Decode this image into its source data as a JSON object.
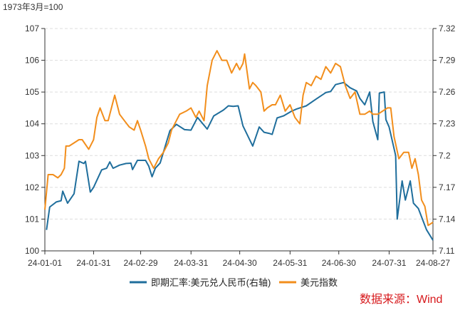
{
  "chart_data": {
    "type": "line",
    "left_axis_note": "1973年3月=100",
    "source_note": "数据来源：Wind",
    "x_ticks": [
      "24-01-01",
      "24-01-31",
      "24-02-29",
      "24-03-31",
      "24-04-30",
      "24-05-31",
      "24-06-30",
      "24-07-31",
      "24-08-27"
    ],
    "x_range": [
      "2024-01-01",
      "2024-08-27"
    ],
    "y_left": {
      "min": 100,
      "max": 107,
      "ticks": [
        "100",
        "101",
        "102",
        "103",
        "104",
        "105",
        "106",
        "107"
      ]
    },
    "y_right": {
      "min": 7.11,
      "max": 7.32,
      "ticks": [
        "7.11",
        "7.14",
        "7.17",
        "7.2",
        "7.23",
        "7.26",
        "7.29",
        "7.32"
      ]
    },
    "grid": "horizontal-dashed",
    "legend_position": "bottom",
    "series": [
      {
        "name": "即期汇率:美元兑人民币(右轴)",
        "axis": "right",
        "color": "#1f6e9c",
        "points": [
          [
            "2024-01-02",
            7.1298
          ],
          [
            "2024-01-04",
            7.1514
          ],
          [
            "2024-01-08",
            7.1562
          ],
          [
            "2024-01-11",
            7.1574
          ],
          [
            "2024-01-12",
            7.1664
          ],
          [
            "2024-01-15",
            7.155
          ],
          [
            "2024-01-19",
            7.164
          ],
          [
            "2024-01-22",
            7.1946
          ],
          [
            "2024-01-25",
            7.1925
          ],
          [
            "2024-01-26",
            7.1946
          ],
          [
            "2024-01-29",
            7.1655
          ],
          [
            "2024-01-31",
            7.17
          ],
          [
            "2024-02-05",
            7.1865
          ],
          [
            "2024-02-08",
            7.188
          ],
          [
            "2024-02-10",
            7.194
          ],
          [
            "2024-02-12",
            7.188
          ],
          [
            "2024-02-16",
            7.191
          ],
          [
            "2024-02-20",
            7.1925
          ],
          [
            "2024-02-23",
            7.1928
          ],
          [
            "2024-02-24",
            7.1868
          ],
          [
            "2024-02-27",
            7.1955
          ],
          [
            "2024-03-01",
            7.1955
          ],
          [
            "2024-03-03",
            7.1955
          ],
          [
            "2024-03-05",
            7.19
          ],
          [
            "2024-03-07",
            7.18
          ],
          [
            "2024-03-09",
            7.188
          ],
          [
            "2024-03-12",
            7.193
          ],
          [
            "2024-03-18",
            7.2235
          ],
          [
            "2024-03-22",
            7.2295
          ],
          [
            "2024-03-27",
            7.2245
          ],
          [
            "2024-03-31",
            7.224
          ],
          [
            "2024-04-04",
            7.236
          ],
          [
            "2024-04-10",
            7.225
          ],
          [
            "2024-04-14",
            7.2375
          ],
          [
            "2024-04-20",
            7.243
          ],
          [
            "2024-04-23",
            7.247
          ],
          [
            "2024-04-26",
            7.2465
          ],
          [
            "2024-04-29",
            7.247
          ],
          [
            "2024-05-02",
            7.228
          ],
          [
            "2024-05-08",
            7.209
          ],
          [
            "2024-05-12",
            7.227
          ],
          [
            "2024-05-15",
            7.222
          ],
          [
            "2024-05-18",
            7.221
          ],
          [
            "2024-05-20",
            7.22
          ],
          [
            "2024-05-23",
            7.2355
          ],
          [
            "2024-05-27",
            7.2375
          ],
          [
            "2024-06-01",
            7.242
          ],
          [
            "2024-06-04",
            7.244
          ],
          [
            "2024-06-10",
            7.247
          ],
          [
            "2024-06-16",
            7.2533
          ],
          [
            "2024-06-22",
            7.2595
          ],
          [
            "2024-06-25",
            7.2605
          ],
          [
            "2024-06-28",
            7.267
          ],
          [
            "2024-07-03",
            7.269
          ],
          [
            "2024-07-07",
            7.264
          ],
          [
            "2024-07-11",
            7.261
          ],
          [
            "2024-07-13",
            7.254
          ],
          [
            "2024-07-16",
            7.248
          ],
          [
            "2024-07-19",
            7.26
          ],
          [
            "2024-07-21",
            7.232
          ],
          [
            "2024-07-24",
            7.215
          ],
          [
            "2024-07-25",
            7.259
          ],
          [
            "2024-07-28",
            7.26
          ],
          [
            "2024-07-29",
            7.234
          ],
          [
            "2024-07-31",
            7.227
          ],
          [
            "2024-08-04",
            7.2
          ],
          [
            "2024-08-05",
            7.14
          ],
          [
            "2024-08-08",
            7.176
          ],
          [
            "2024-08-10",
            7.158
          ],
          [
            "2024-08-13",
            7.176
          ],
          [
            "2024-08-15",
            7.155
          ],
          [
            "2024-08-18",
            7.15
          ],
          [
            "2024-08-21",
            7.138
          ],
          [
            "2024-08-23",
            7.13
          ],
          [
            "2024-08-27",
            7.12
          ]
        ]
      },
      {
        "name": "美元指数",
        "axis": "left",
        "color": "#f28e1c",
        "points": [
          [
            "2024-01-01",
            101.3
          ],
          [
            "2024-01-03",
            102.4
          ],
          [
            "2024-01-06",
            102.4
          ],
          [
            "2024-01-09",
            102.3
          ],
          [
            "2024-01-11",
            102.4
          ],
          [
            "2024-01-13",
            102.6
          ],
          [
            "2024-01-14",
            103.3
          ],
          [
            "2024-01-16",
            103.3
          ],
          [
            "2024-01-19",
            103.4
          ],
          [
            "2024-01-22",
            103.5
          ],
          [
            "2024-01-24",
            103.5
          ],
          [
            "2024-01-28",
            103.2
          ],
          [
            "2024-01-31",
            103.5
          ],
          [
            "2024-02-02",
            104.2
          ],
          [
            "2024-02-04",
            104.5
          ],
          [
            "2024-02-07",
            104.1
          ],
          [
            "2024-02-09",
            104.1
          ],
          [
            "2024-02-13",
            104.9
          ],
          [
            "2024-02-16",
            104.3
          ],
          [
            "2024-02-19",
            104.1
          ],
          [
            "2024-02-22",
            103.9
          ],
          [
            "2024-02-25",
            103.8
          ],
          [
            "2024-02-27",
            104.1
          ],
          [
            "2024-02-29",
            103.8
          ],
          [
            "2024-03-03",
            103.3
          ],
          [
            "2024-03-05",
            102.9
          ],
          [
            "2024-03-08",
            102.6
          ],
          [
            "2024-03-11",
            102.9
          ],
          [
            "2024-03-14",
            103.1
          ],
          [
            "2024-03-17",
            103.4
          ],
          [
            "2024-03-19",
            103.8
          ],
          [
            "2024-03-21",
            104.0
          ],
          [
            "2024-03-24",
            104.3
          ],
          [
            "2024-03-28",
            104.4
          ],
          [
            "2024-03-31",
            104.5
          ],
          [
            "2024-04-03",
            104.2
          ],
          [
            "2024-04-05",
            104.4
          ],
          [
            "2024-04-08",
            104.1
          ],
          [
            "2024-04-10",
            105.2
          ],
          [
            "2024-04-13",
            106.0
          ],
          [
            "2024-04-16",
            106.3
          ],
          [
            "2024-04-19",
            106.0
          ],
          [
            "2024-04-22",
            106.0
          ],
          [
            "2024-04-25",
            105.6
          ],
          [
            "2024-04-28",
            105.9
          ],
          [
            "2024-04-30",
            105.7
          ],
          [
            "2024-05-02",
            105.9
          ],
          [
            "2024-05-03",
            106.2
          ],
          [
            "2024-05-06",
            105.1
          ],
          [
            "2024-05-08",
            105.3
          ],
          [
            "2024-05-10",
            105.2
          ],
          [
            "2024-05-13",
            105.0
          ],
          [
            "2024-05-15",
            104.4
          ],
          [
            "2024-05-17",
            104.5
          ],
          [
            "2024-05-20",
            104.6
          ],
          [
            "2024-05-22",
            104.6
          ],
          [
            "2024-05-25",
            104.9
          ],
          [
            "2024-05-28",
            104.4
          ],
          [
            "2024-05-31",
            104.6
          ],
          [
            "2024-06-03",
            104.2
          ],
          [
            "2024-06-06",
            104.0
          ],
          [
            "2024-06-08",
            104.9
          ],
          [
            "2024-06-10",
            105.3
          ],
          [
            "2024-06-13",
            105.2
          ],
          [
            "2024-06-16",
            105.5
          ],
          [
            "2024-06-19",
            105.4
          ],
          [
            "2024-06-22",
            105.8
          ],
          [
            "2024-06-25",
            105.6
          ],
          [
            "2024-06-28",
            105.9
          ],
          [
            "2024-07-01",
            105.8
          ],
          [
            "2024-07-04",
            105.2
          ],
          [
            "2024-07-07",
            104.8
          ],
          [
            "2024-07-10",
            105.0
          ],
          [
            "2024-07-13",
            104.3
          ],
          [
            "2024-07-16",
            104.3
          ],
          [
            "2024-07-19",
            104.4
          ],
          [
            "2024-07-21",
            104.3
          ],
          [
            "2024-07-24",
            104.3
          ],
          [
            "2024-07-27",
            104.4
          ],
          [
            "2024-07-30",
            104.5
          ],
          [
            "2024-08-01",
            104.5
          ],
          [
            "2024-08-03",
            103.6
          ],
          [
            "2024-08-06",
            102.9
          ],
          [
            "2024-08-09",
            103.1
          ],
          [
            "2024-08-12",
            103.1
          ],
          [
            "2024-08-14",
            102.6
          ],
          [
            "2024-08-16",
            102.9
          ],
          [
            "2024-08-18",
            102.4
          ],
          [
            "2024-08-20",
            101.6
          ],
          [
            "2024-08-22",
            101.4
          ],
          [
            "2024-08-24",
            100.8
          ],
          [
            "2024-08-27",
            100.9
          ]
        ]
      }
    ]
  }
}
